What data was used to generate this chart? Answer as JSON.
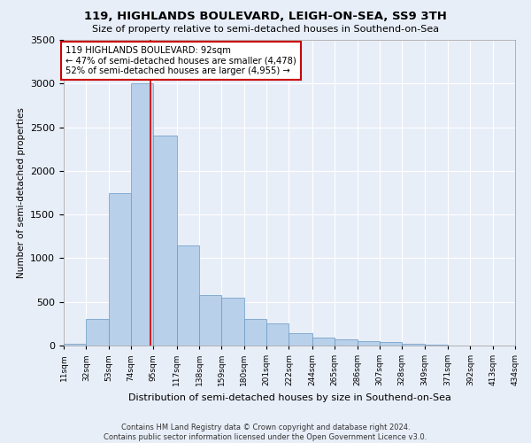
{
  "title": "119, HIGHLANDS BOULEVARD, LEIGH-ON-SEA, SS9 3TH",
  "subtitle": "Size of property relative to semi-detached houses in Southend-on-Sea",
  "xlabel": "Distribution of semi-detached houses by size in Southend-on-Sea",
  "ylabel": "Number of semi-detached properties",
  "footer_line1": "Contains HM Land Registry data © Crown copyright and database right 2024.",
  "footer_line2": "Contains public sector information licensed under the Open Government Licence v3.0.",
  "annotation_line1": "119 HIGHLANDS BOULEVARD: 92sqm",
  "annotation_line2": "← 47% of semi-detached houses are smaller (4,478)",
  "annotation_line3": "52% of semi-detached houses are larger (4,955) →",
  "property_size": 92,
  "bar_color": "#b8d0ea",
  "bar_edge_color": "#6899c4",
  "ref_line_color": "#cc0000",
  "background_color": "#e8eef8",
  "plot_background_color": "#e8eef8",
  "ylim": [
    0,
    3500
  ],
  "tick_labels": [
    "11sqm",
    "32sqm",
    "53sqm",
    "74sqm",
    "95sqm",
    "117sqm",
    "138sqm",
    "159sqm",
    "180sqm",
    "201sqm",
    "222sqm",
    "244sqm",
    "265sqm",
    "286sqm",
    "307sqm",
    "328sqm",
    "349sqm",
    "371sqm",
    "392sqm",
    "413sqm",
    "434sqm"
  ],
  "bar_left_edges": [
    11,
    32,
    53,
    74,
    95,
    117,
    138,
    159,
    180,
    201,
    222,
    244,
    265,
    286,
    307,
    328,
    349,
    371,
    392,
    413
  ],
  "bar_heights": [
    25,
    300,
    1750,
    3000,
    2400,
    1150,
    580,
    550,
    300,
    250,
    145,
    95,
    70,
    55,
    45,
    20,
    10,
    5,
    3,
    2
  ],
  "xlim_left": 11,
  "xlim_right": 434
}
